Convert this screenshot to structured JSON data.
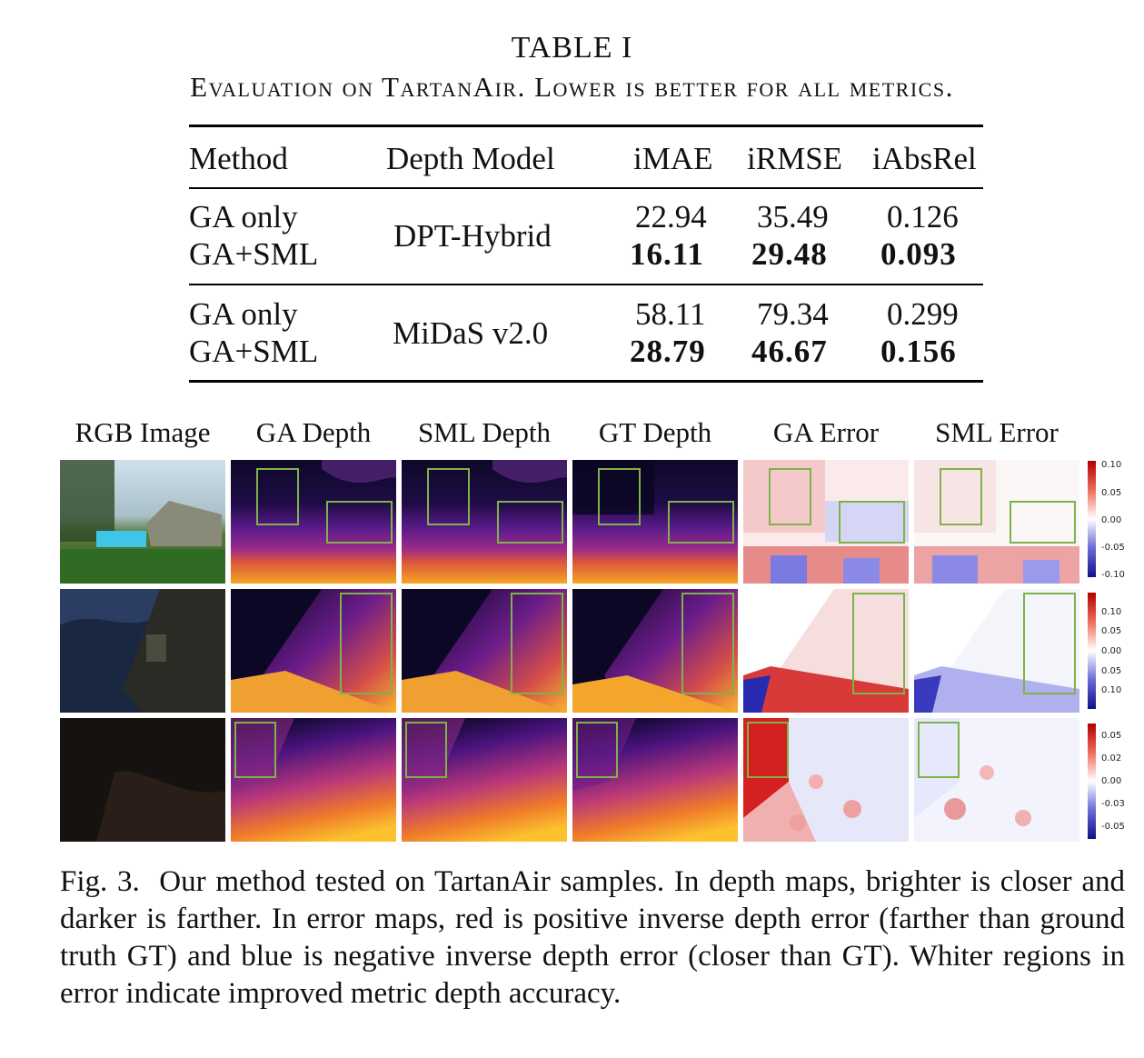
{
  "table": {
    "title": "TABLE I",
    "caption": "Evaluation on TartanAir. Lower is better for all metrics.",
    "headers": [
      "Method",
      "Depth Model",
      "iMAE",
      "iRMSE",
      "iAbsRel"
    ],
    "groups": [
      {
        "depth_model": "DPT-Hybrid",
        "rows": [
          {
            "method": "GA only",
            "imae": "22.94",
            "irmse": "35.49",
            "iabsrel": "0.126",
            "bold": false
          },
          {
            "method": "GA+SML",
            "imae": "16.11",
            "irmse": "29.48",
            "iabsrel": "0.093",
            "bold": true
          }
        ]
      },
      {
        "depth_model": "MiDaS v2.0",
        "rows": [
          {
            "method": "GA only",
            "imae": "58.11",
            "irmse": "79.34",
            "iabsrel": "0.299",
            "bold": false
          },
          {
            "method": "GA+SML",
            "imae": "28.79",
            "irmse": "46.67",
            "iabsrel": "0.156",
            "bold": true
          }
        ]
      }
    ]
  },
  "figure": {
    "column_headers": [
      "RGB Image",
      "GA Depth",
      "SML Depth",
      "GT Depth",
      "GA Error",
      "SML Error"
    ],
    "colorbars": [
      {
        "ticks": [
          "0.10",
          "0.05",
          "0.00",
          "-0.05",
          "-0.10"
        ]
      },
      {
        "ticks": [
          "0.10",
          "0.05",
          "0.00",
          "0.05",
          "0.10"
        ]
      },
      {
        "ticks": [
          "0.05",
          "0.02",
          "0.00",
          "-0.03",
          "-0.05"
        ]
      }
    ],
    "colors": {
      "highlight_box": "#7fb24a",
      "error_positive": "#c00000",
      "error_negative": "#1a1a9a"
    },
    "caption_label": "Fig. 3.",
    "caption_text": "Our method tested on TartanAir samples. In depth maps, brighter is closer and darker is farther. In error maps, red is positive inverse depth error (farther than ground truth GT) and blue is negative inverse depth error (closer than GT). Whiter regions in error indicate improved metric depth accuracy."
  }
}
